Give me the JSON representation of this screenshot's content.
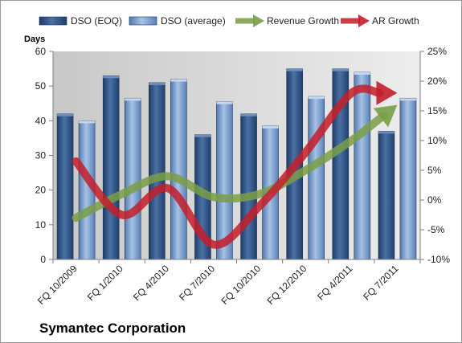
{
  "chart_data": {
    "type": "bar",
    "title": "Symantec Corporation",
    "ylabel": "Days",
    "categories": [
      "FQ 10/2009",
      "FQ 1/2010",
      "FQ 4/2010",
      "FQ 7/2010",
      "FQ 10/2010",
      "FQ 12/2010",
      "FQ 4/2011",
      "FQ 7/2011"
    ],
    "ylim": [
      0,
      60
    ],
    "yticks": [
      "0",
      "10",
      "20",
      "30",
      "40",
      "50",
      "60"
    ],
    "y2lim": [
      -10,
      25
    ],
    "y2ticks": [
      "-10%",
      "-5%",
      "0%",
      "5%",
      "10%",
      "15%",
      "20%",
      "25%"
    ],
    "series": [
      {
        "name": "DSO (EOQ)",
        "kind": "bar",
        "color": "#2f5386",
        "values": [
          42,
          53,
          51,
          36,
          42,
          55,
          55,
          37
        ]
      },
      {
        "name": "DSO (average)",
        "kind": "bar",
        "color": "#6f96c8",
        "values": [
          40,
          46.5,
          52,
          45.5,
          38.5,
          47,
          54,
          46.5
        ]
      },
      {
        "name": "Revenue Growth",
        "kind": "arrow-line",
        "color": "#7a9e47",
        "axis": "secondary",
        "values": [
          -3,
          1,
          4,
          0.5,
          1,
          5,
          10,
          16
        ]
      },
      {
        "name": "AR Growth",
        "kind": "arrow-line",
        "color": "#c41e2a",
        "axis": "secondary",
        "values": [
          6.5,
          -2.5,
          2,
          -7.5,
          -1,
          8,
          18,
          18
        ]
      }
    ],
    "grid": false,
    "legend_position": "top"
  }
}
